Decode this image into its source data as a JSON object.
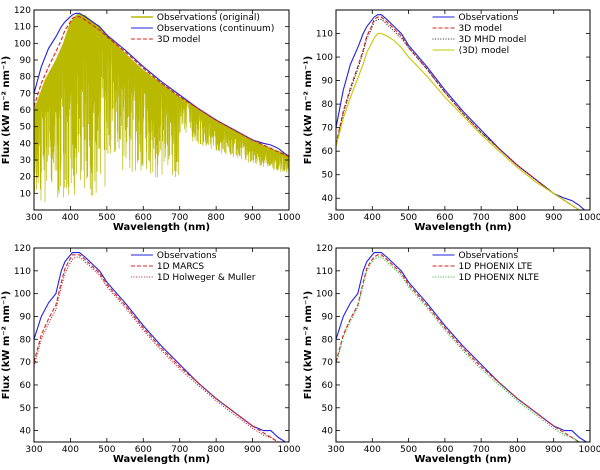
{
  "chart_data": [
    {
      "type": "line",
      "xlabel": "Wavelength (nm)",
      "ylabel": "Flux (kW m⁻² nm⁻¹)",
      "xlim": [
        300,
        1000
      ],
      "ylim": [
        0,
        120
      ],
      "xticks": [
        300,
        400,
        500,
        600,
        700,
        800,
        900,
        1000
      ],
      "yticks": [
        10,
        20,
        30,
        40,
        50,
        60,
        70,
        80,
        90,
        100,
        110,
        120
      ],
      "legend_position": "top-right",
      "series": [
        {
          "name": "Observations (original)",
          "color": "#b9b900",
          "style": "noisy",
          "x": [
            300,
            330,
            360,
            380,
            400,
            420,
            440,
            480,
            520,
            560,
            600,
            650,
            700,
            750,
            800,
            850,
            900,
            950,
            1000
          ],
          "y": [
            60,
            78,
            90,
            100,
            113,
            118,
            117,
            110,
            101,
            92,
            84,
            76,
            68,
            61,
            54,
            48,
            42,
            37,
            33
          ]
        },
        {
          "name": "Observations (continuum)",
          "color": "#2222dd",
          "style": "solid",
          "x": [
            300,
            320,
            340,
            360,
            375,
            385,
            395,
            405,
            415,
            425,
            440,
            460,
            480,
            500,
            550,
            600,
            650,
            700,
            750,
            800,
            850,
            900,
            930,
            950,
            970,
            1000
          ],
          "y": [
            70,
            86,
            97,
            104,
            110,
            113,
            115,
            117,
            118,
            118,
            116,
            113,
            110,
            105,
            96,
            86,
            77,
            69,
            61,
            54,
            48,
            42,
            40,
            39,
            37,
            32
          ]
        },
        {
          "name": "3D model",
          "color": "#dd2222",
          "style": "dashed",
          "x": [
            300,
            320,
            340,
            360,
            375,
            385,
            395,
            405,
            415,
            425,
            440,
            460,
            480,
            500,
            550,
            600,
            650,
            700,
            750,
            800,
            850,
            900,
            930,
            950,
            970,
            1000
          ],
          "y": [
            62,
            76,
            86,
            95,
            102,
            108,
            111,
            115,
            116,
            116,
            114,
            111,
            108,
            104,
            95,
            85,
            76,
            68,
            61,
            54,
            48,
            42,
            39,
            37,
            35,
            32
          ]
        }
      ]
    },
    {
      "type": "line",
      "xlabel": "Wavelength (nm)",
      "ylabel": "Flux (kW m⁻² nm⁻¹)",
      "xlim": [
        300,
        1000
      ],
      "ylim": [
        35,
        120
      ],
      "xticks": [
        300,
        400,
        500,
        600,
        700,
        800,
        900,
        1000
      ],
      "yticks": [
        40,
        50,
        60,
        70,
        80,
        90,
        100,
        110
      ],
      "legend_position": "top-right",
      "series": [
        {
          "name": "Observations",
          "color": "#2222dd",
          "style": "solid",
          "x": [
            300,
            320,
            340,
            360,
            375,
            385,
            395,
            405,
            415,
            425,
            440,
            460,
            480,
            500,
            550,
            600,
            650,
            700,
            750,
            800,
            850,
            900,
            930,
            950,
            970,
            1000
          ],
          "y": [
            70,
            86,
            97,
            104,
            110,
            113,
            115,
            117,
            118,
            118,
            116,
            113,
            110,
            105,
            96,
            86,
            77,
            69,
            61,
            54,
            48,
            42,
            40,
            39,
            37,
            33
          ]
        },
        {
          "name": "3D model",
          "color": "#dd2222",
          "style": "dashed",
          "x": [
            300,
            320,
            340,
            360,
            375,
            385,
            395,
            405,
            415,
            425,
            440,
            460,
            480,
            500,
            550,
            600,
            650,
            700,
            750,
            800,
            850,
            900,
            930,
            950,
            970,
            1000
          ],
          "y": [
            63,
            77,
            87,
            96,
            103,
            109,
            112,
            116,
            117,
            117,
            115,
            112,
            109,
            104,
            95,
            85,
            76,
            68,
            61,
            54,
            48,
            42,
            39,
            37,
            35,
            33
          ]
        },
        {
          "name": "3D MHD model",
          "color": "#222222",
          "style": "dotted",
          "x": [
            300,
            320,
            340,
            360,
            375,
            385,
            395,
            405,
            415,
            425,
            440,
            460,
            480,
            500,
            550,
            600,
            650,
            700,
            750,
            800,
            850,
            900,
            930,
            950,
            970,
            1000
          ],
          "y": [
            62,
            76,
            86,
            95,
            102,
            108,
            111,
            115,
            116,
            116,
            114,
            111,
            108,
            104,
            95,
            85,
            76,
            68,
            61,
            54,
            48,
            42,
            39,
            37,
            35,
            33
          ]
        },
        {
          "name": "⟨3D⟩ model",
          "color": "#c8c800",
          "style": "solid",
          "x": [
            300,
            320,
            340,
            360,
            375,
            385,
            395,
            405,
            415,
            425,
            440,
            460,
            480,
            500,
            550,
            600,
            650,
            700,
            750,
            800,
            850,
            900,
            930,
            950,
            970,
            1000
          ],
          "y": [
            62,
            74,
            83,
            91,
            97,
            102,
            105,
            108,
            110,
            110,
            109,
            107,
            104,
            100,
            92,
            83,
            75,
            67,
            60,
            53,
            47,
            42,
            39,
            37,
            35,
            33
          ]
        }
      ]
    },
    {
      "type": "line",
      "xlabel": "Wavelength (nm)",
      "ylabel": "Flux (kW m⁻² nm⁻¹)",
      "xlim": [
        300,
        1000
      ],
      "ylim": [
        35,
        120
      ],
      "xticks": [
        300,
        400,
        500,
        600,
        700,
        800,
        900,
        1000
      ],
      "yticks": [
        40,
        50,
        60,
        70,
        80,
        90,
        100,
        110,
        120
      ],
      "legend_position": "top-right",
      "series": [
        {
          "name": "Observations",
          "color": "#2222dd",
          "style": "solid",
          "x": [
            300,
            320,
            340,
            360,
            375,
            385,
            395,
            405,
            415,
            425,
            440,
            460,
            480,
            500,
            550,
            600,
            650,
            700,
            750,
            800,
            850,
            900,
            930,
            950,
            970,
            1000
          ],
          "y": [
            80,
            90,
            96,
            100,
            110,
            114,
            116,
            118,
            118,
            118,
            116,
            113,
            110,
            105,
            96,
            86,
            77,
            69,
            61,
            54,
            48,
            42,
            40,
            40,
            37,
            34
          ]
        },
        {
          "name": "1D MARCS",
          "color": "#dd2222",
          "style": "dashed",
          "x": [
            300,
            320,
            340,
            360,
            375,
            385,
            395,
            405,
            415,
            425,
            440,
            460,
            480,
            500,
            550,
            600,
            650,
            700,
            750,
            800,
            850,
            900,
            930,
            950,
            970,
            1000
          ],
          "y": [
            70,
            82,
            89,
            95,
            105,
            111,
            114,
            117,
            117,
            117,
            115,
            112,
            109,
            104,
            95,
            85,
            76,
            68,
            61,
            54,
            48,
            42,
            39,
            37,
            35,
            34
          ]
        },
        {
          "name": "1D Holweger & Muller",
          "color": "#aa2222",
          "style": "dotted",
          "x": [
            300,
            320,
            340,
            360,
            375,
            385,
            395,
            405,
            415,
            425,
            440,
            460,
            480,
            500,
            550,
            600,
            650,
            700,
            750,
            800,
            850,
            900,
            930,
            950,
            970,
            1000
          ],
          "y": [
            68,
            80,
            87,
            93,
            103,
            109,
            112,
            115,
            116,
            116,
            114,
            111,
            108,
            103,
            94,
            84,
            75,
            67,
            60,
            53,
            47,
            41,
            38,
            37,
            35,
            34
          ]
        }
      ]
    },
    {
      "type": "line",
      "xlabel": "Wavelength (nm)",
      "ylabel": "Flux (kW m⁻² nm⁻¹)",
      "xlim": [
        300,
        1000
      ],
      "ylim": [
        35,
        120
      ],
      "xticks": [
        300,
        400,
        500,
        600,
        700,
        800,
        900,
        1000
      ],
      "yticks": [
        40,
        50,
        60,
        70,
        80,
        90,
        100,
        110,
        120
      ],
      "legend_position": "top-right",
      "series": [
        {
          "name": "Observations",
          "color": "#2222dd",
          "style": "solid",
          "x": [
            300,
            320,
            340,
            360,
            375,
            385,
            395,
            405,
            415,
            425,
            440,
            460,
            480,
            500,
            550,
            600,
            650,
            700,
            750,
            800,
            850,
            900,
            930,
            950,
            970,
            1000
          ],
          "y": [
            80,
            90,
            96,
            100,
            110,
            114,
            116,
            118,
            118,
            118,
            116,
            113,
            110,
            105,
            96,
            86,
            77,
            69,
            61,
            54,
            48,
            42,
            40,
            40,
            37,
            34
          ]
        },
        {
          "name": "1D PHOENIX LTE",
          "color": "#dd2222",
          "style": "dashed",
          "x": [
            300,
            320,
            340,
            360,
            375,
            385,
            395,
            405,
            415,
            425,
            440,
            460,
            480,
            500,
            550,
            600,
            650,
            700,
            750,
            800,
            850,
            900,
            930,
            950,
            970,
            1000
          ],
          "y": [
            70,
            82,
            89,
            95,
            105,
            111,
            114,
            116,
            117,
            117,
            115,
            112,
            109,
            104,
            95,
            85,
            76,
            68,
            61,
            54,
            48,
            42,
            39,
            37,
            35,
            34
          ]
        },
        {
          "name": "1D PHOENIX NLTE",
          "color": "#22aa22",
          "style": "dotted",
          "x": [
            300,
            320,
            340,
            360,
            375,
            385,
            395,
            405,
            415,
            425,
            440,
            460,
            480,
            500,
            550,
            600,
            650,
            700,
            750,
            800,
            850,
            900,
            930,
            950,
            970,
            1000
          ],
          "y": [
            69,
            81,
            88,
            94,
            104,
            110,
            113,
            115,
            116,
            116,
            114,
            111,
            108,
            103,
            94,
            84,
            75,
            67,
            60,
            53,
            47,
            41,
            38,
            37,
            35,
            34
          ]
        }
      ]
    }
  ]
}
